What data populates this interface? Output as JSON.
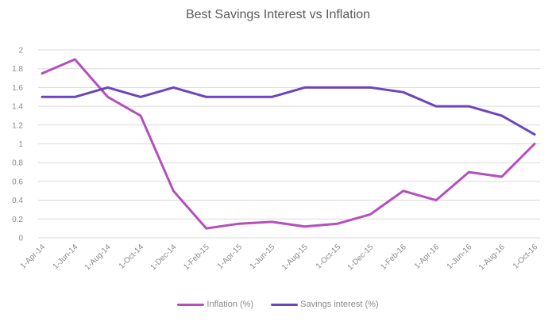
{
  "chart_data": {
    "type": "line",
    "title": "Best Savings Interest vs Inflation",
    "xlabel": "",
    "ylabel": "",
    "ylim": [
      0,
      2
    ],
    "yticks": [
      "0",
      "0.2",
      "0.4",
      "0.6",
      "0.8",
      "1",
      "1.2",
      "1.4",
      "1.6",
      "1.8",
      "2"
    ],
    "grid": true,
    "legend_position": "bottom",
    "categories": [
      "1-Apr-14",
      "1-Jun-14",
      "1-Aug-14",
      "1-Oct-14",
      "1-Dec-14",
      "1-Feb-15",
      "1-Apr-15",
      "1-Jun-15",
      "1-Aug-15",
      "1-Oct-15",
      "1-Dec-15",
      "1-Feb-16",
      "1-Apr-16",
      "1-Jun-16",
      "1-Aug-16",
      "1-Oct-16"
    ],
    "series": [
      {
        "name": "Inflation (%)",
        "color": "#b44fbd",
        "values": [
          1.75,
          1.9,
          1.5,
          1.3,
          0.5,
          0.1,
          0.15,
          0.17,
          0.12,
          0.15,
          0.25,
          0.5,
          0.4,
          0.7,
          0.65,
          1.0
        ]
      },
      {
        "name": "Savings interest (%)",
        "color": "#6a46bd",
        "values": [
          1.5,
          1.5,
          1.6,
          1.5,
          1.6,
          1.5,
          1.5,
          1.5,
          1.6,
          1.6,
          1.6,
          1.55,
          1.4,
          1.4,
          1.3,
          1.1
        ]
      }
    ]
  },
  "legend": {
    "items": [
      {
        "label": "Inflation (%)",
        "color": "#b44fbd"
      },
      {
        "label": "Savings interest (%)",
        "color": "#6a46bd"
      }
    ]
  }
}
